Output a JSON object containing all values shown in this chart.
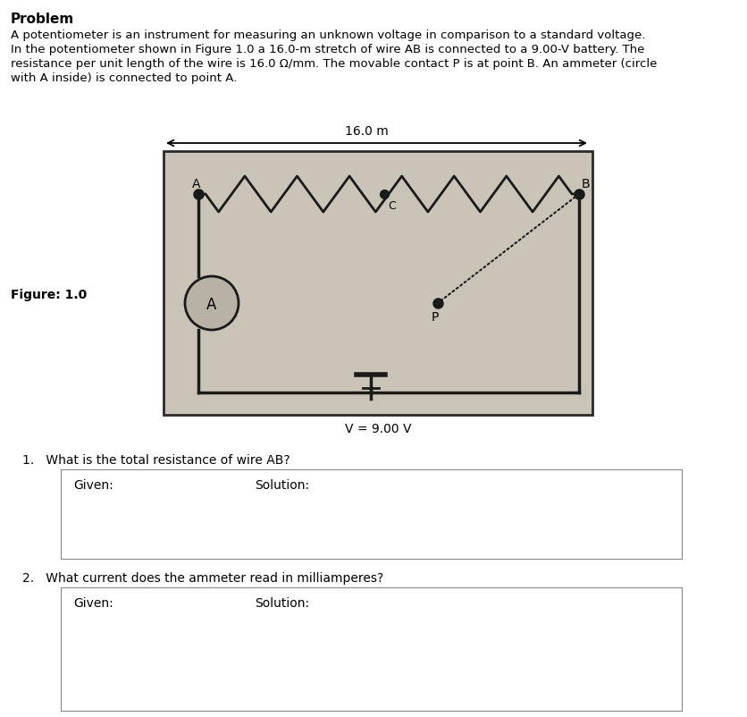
{
  "title": "Problem",
  "problem_text_line1": "A potentiometer is an instrument for measuring an unknown voltage in comparison to a standard voltage.",
  "problem_text_line2": "In the potentiometer shown in Figure 1.0 a 16.0-m stretch of wire AB is connected to a 9.00-V battery. The",
  "problem_text_line3": "resistance per unit length of the wire is 16.0 Ω/mm. The movable contact P is at point B. An ammeter (circle",
  "problem_text_line4": "with A inside) is connected to point A.",
  "figure_label": "Figure: 1.0",
  "dimension_label": "16.0 m",
  "voltage_label": "V = 9.00 V",
  "q1_text": "1.   What is the total resistance of wire AB?",
  "q2_text": "2.   What current does the ammeter read in milliamperes?",
  "given_label": "Given:",
  "solution_label": "Solution:",
  "bg_color": "#ffffff",
  "circuit_bg": "#cac4b8",
  "wire_color": "#1a1a1a",
  "ammeter_bg": "#b8b2a6"
}
